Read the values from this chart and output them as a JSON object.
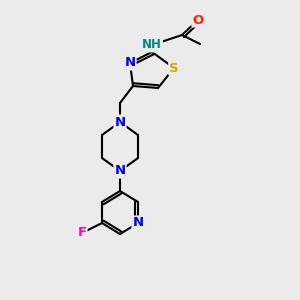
{
  "background_color": "#ebebeb",
  "atom_colors": {
    "C": "#000000",
    "N": "#0000ee",
    "S": "#ccaa00",
    "O": "#ff2200",
    "F": "#ff00bb",
    "H": "#008888"
  },
  "bond_color": "#000000",
  "lw": 1.5
}
